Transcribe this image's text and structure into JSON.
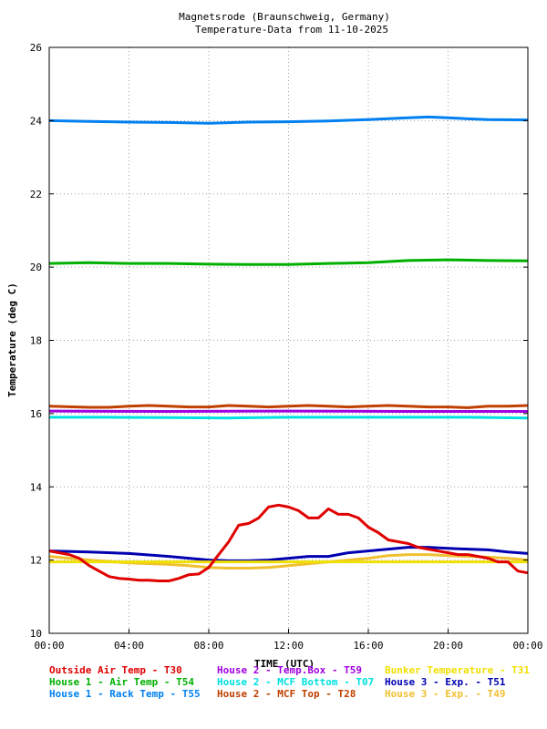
{
  "chart_data": {
    "type": "line",
    "title": "Magnetsrode (Braunschweig, Germany)",
    "subtitle": "Temperature-Data from 11-10-2025",
    "xlabel": "TIME (UTC)",
    "ylabel": "Temperature (deg C)",
    "xlim": [
      0,
      24
    ],
    "ylim": [
      10,
      26
    ],
    "grid": true,
    "x_ticks": [
      "00:00",
      "04:00",
      "08:00",
      "12:00",
      "16:00",
      "20:00",
      "00:00"
    ],
    "y_ticks": [
      "10",
      "12",
      "14",
      "16",
      "18",
      "20",
      "22",
      "24",
      "26"
    ],
    "legend_position": "bottom",
    "series": [
      {
        "name": "Outside Air Temp",
        "code": "T30",
        "color": "#e00000",
        "x": [
          0,
          0.5,
          1,
          1.5,
          2,
          2.5,
          3,
          3.5,
          4,
          4.5,
          5,
          5.5,
          6,
          6.5,
          7,
          7.5,
          8,
          8.5,
          9,
          9.5,
          10,
          10.5,
          11,
          11.5,
          12,
          12.5,
          13,
          13.5,
          14,
          14.5,
          15,
          15.5,
          16,
          16.5,
          17,
          17.5,
          18,
          18.5,
          19,
          19.5,
          20,
          20.5,
          21,
          21.5,
          22,
          22.5,
          23,
          23.5,
          24
        ],
        "y": [
          12.25,
          12.2,
          12.15,
          12.05,
          11.85,
          11.7,
          11.55,
          11.5,
          11.48,
          11.45,
          11.45,
          11.43,
          11.43,
          11.5,
          11.6,
          11.62,
          11.8,
          12.15,
          12.5,
          12.95,
          13.0,
          13.15,
          13.45,
          13.5,
          13.45,
          13.35,
          13.15,
          13.15,
          13.4,
          13.25,
          13.25,
          13.15,
          12.9,
          12.75,
          12.55,
          12.5,
          12.45,
          12.35,
          12.3,
          12.25,
          12.2,
          12.15,
          12.15,
          12.1,
          12.05,
          11.95,
          11.95,
          11.7,
          11.65
        ]
      },
      {
        "name": "House 1 - Air  Temp",
        "code": "T54",
        "color": "#00b000",
        "x": [
          0,
          2,
          4,
          6,
          8,
          10,
          12,
          14,
          16,
          18,
          20,
          22,
          24
        ],
        "y": [
          20.1,
          20.12,
          20.1,
          20.1,
          20.08,
          20.07,
          20.07,
          20.1,
          20.12,
          20.18,
          20.2,
          20.18,
          20.17
        ]
      },
      {
        "name": "House 1 - Rack Temp",
        "code": "T55",
        "color": "#0080f0",
        "x": [
          0,
          2,
          4,
          6,
          8,
          10,
          12,
          14,
          16,
          18,
          19,
          20,
          21,
          22,
          24
        ],
        "y": [
          24.0,
          23.98,
          23.96,
          23.95,
          23.93,
          23.96,
          23.97,
          23.99,
          24.03,
          24.08,
          24.1,
          24.08,
          24.05,
          24.03,
          24.02
        ]
      },
      {
        "name": "House 2 - Temp.Box",
        "code": "T59",
        "color": "#a000e0",
        "x": [
          0,
          6,
          12,
          18,
          24
        ],
        "y": [
          16.07,
          16.06,
          16.07,
          16.06,
          16.06
        ]
      },
      {
        "name": "House 2 - MCF Bottom",
        "code": "T07",
        "color": "#00e0e0",
        "x": [
          0,
          3,
          6,
          9,
          12,
          15,
          18,
          21,
          24
        ],
        "y": [
          15.9,
          15.9,
          15.89,
          15.88,
          15.9,
          15.9,
          15.9,
          15.9,
          15.88
        ]
      },
      {
        "name": "House 2 - MCF Top",
        "code": "T28",
        "color": "#c04000",
        "x": [
          0,
          2,
          3,
          4,
          5,
          6,
          7,
          8,
          9,
          10,
          11,
          12,
          13,
          14,
          15,
          16,
          17,
          18,
          19,
          20,
          21,
          22,
          23,
          24
        ],
        "y": [
          16.2,
          16.17,
          16.17,
          16.2,
          16.22,
          16.2,
          16.18,
          16.18,
          16.22,
          16.2,
          16.18,
          16.2,
          16.22,
          16.2,
          16.18,
          16.2,
          16.22,
          16.2,
          16.18,
          16.18,
          16.16,
          16.2,
          16.2,
          16.22
        ]
      },
      {
        "name": "Bunker Temperature",
        "code": "T31",
        "color": "#f0e000",
        "x": [
          0,
          4,
          8,
          12,
          16,
          20,
          24
        ],
        "y": [
          11.95,
          11.95,
          11.95,
          11.95,
          11.95,
          11.95,
          11.95
        ]
      },
      {
        "name": "House 3 - Exp.",
        "code": "T51",
        "color": "#0000b0",
        "x": [
          0,
          2,
          4,
          6,
          7,
          8,
          9,
          10,
          11,
          12,
          13,
          14,
          15,
          16,
          17,
          18,
          19,
          20,
          21,
          22,
          23,
          24
        ],
        "y": [
          12.25,
          12.22,
          12.18,
          12.1,
          12.05,
          12.0,
          11.98,
          11.98,
          12.0,
          12.05,
          12.1,
          12.1,
          12.2,
          12.25,
          12.3,
          12.35,
          12.35,
          12.32,
          12.3,
          12.28,
          12.22,
          12.18
        ]
      },
      {
        "name": "House 3 - Exp.",
        "code": "T49",
        "color": "#f0c030",
        "x": [
          0,
          2,
          4,
          6,
          7,
          8,
          9,
          10,
          11,
          12,
          13,
          14,
          15,
          16,
          17,
          18,
          19,
          20,
          21,
          22,
          23,
          24
        ],
        "y": [
          12.1,
          12.0,
          11.92,
          11.88,
          11.85,
          11.8,
          11.78,
          11.78,
          11.8,
          11.85,
          11.9,
          11.95,
          12.0,
          12.05,
          12.12,
          12.15,
          12.15,
          12.12,
          12.1,
          12.08,
          12.05,
          12.0
        ]
      }
    ]
  },
  "legend": {
    "rows": [
      [
        {
          "name": "Outside Air Temp",
          "code": "T30",
          "color": "#e00000"
        },
        {
          "name": "House 2 - Temp.Box",
          "code": "T59",
          "color": "#a000e0"
        },
        {
          "name": "Bunker Temperature",
          "code": "T31",
          "color": "#f0e000"
        }
      ],
      [
        {
          "name": "House 1 - Air  Temp",
          "code": "T54",
          "color": "#00b000"
        },
        {
          "name": "House 2 - MCF Bottom",
          "code": "T07",
          "color": "#00e0e0"
        },
        {
          "name": "House 3 - Exp.",
          "code": "T51",
          "color": "#0000b0"
        }
      ],
      [
        {
          "name": "House 1 - Rack Temp",
          "code": "T55",
          "color": "#0080f0"
        },
        {
          "name": "House 2 - MCF Top",
          "code": "T28",
          "color": "#c04000"
        },
        {
          "name": "House 3 - Exp.",
          "code": "T49",
          "color": "#f0c030"
        }
      ]
    ]
  }
}
